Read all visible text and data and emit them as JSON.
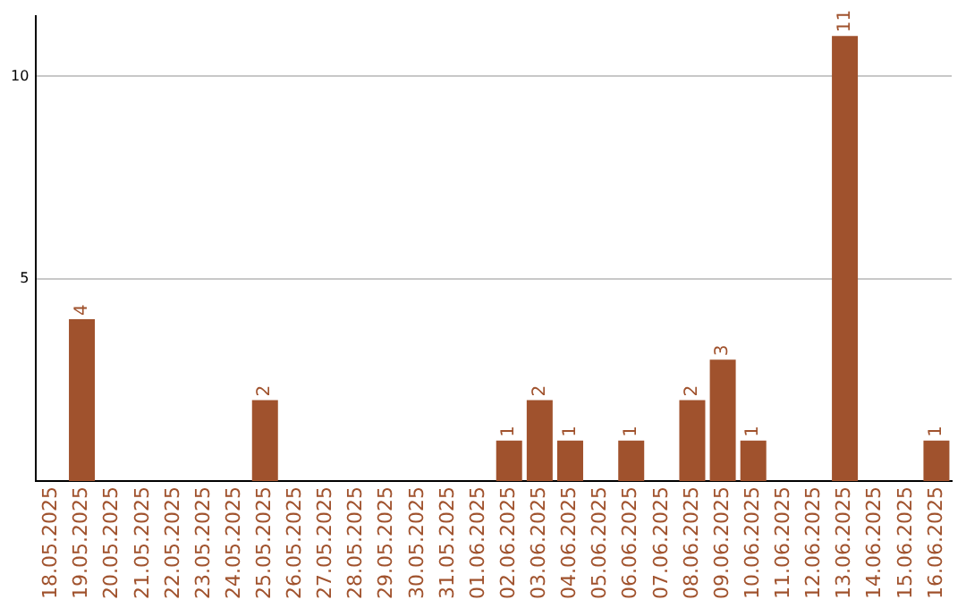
{
  "chart_data": {
    "type": "bar",
    "categories": [
      "18.05.2025",
      "19.05.2025",
      "20.05.2025",
      "21.05.2025",
      "22.05.2025",
      "23.05.2025",
      "24.05.2025",
      "25.05.2025",
      "26.05.2025",
      "27.05.2025",
      "28.05.2025",
      "29.05.2025",
      "30.05.2025",
      "31.05.2025",
      "01.06.2025",
      "02.06.2025",
      "03.06.2025",
      "04.06.2025",
      "05.06.2025",
      "06.06.2025",
      "07.06.2025",
      "08.06.2025",
      "09.06.2025",
      "10.06.2025",
      "11.06.2025",
      "12.06.2025",
      "13.06.2025",
      "14.06.2025",
      "15.06.2025",
      "16.06.2025"
    ],
    "values": [
      0,
      4,
      0,
      0,
      0,
      0,
      0,
      2,
      0,
      0,
      0,
      0,
      0,
      0,
      0,
      1,
      2,
      1,
      0,
      1,
      0,
      2,
      3,
      1,
      0,
      0,
      11,
      0,
      0,
      1
    ],
    "value_labels": [
      null,
      "4",
      null,
      null,
      null,
      null,
      null,
      "2",
      null,
      null,
      null,
      null,
      null,
      null,
      null,
      "1",
      "2",
      "1",
      null,
      "1",
      null,
      "2",
      "3",
      "1",
      null,
      null,
      "11",
      null,
      null,
      "1"
    ],
    "color": "#a0522d",
    "ylim": [
      0,
      11.5
    ],
    "yticks": [
      5,
      10
    ],
    "grid": "y",
    "legend": false
  }
}
